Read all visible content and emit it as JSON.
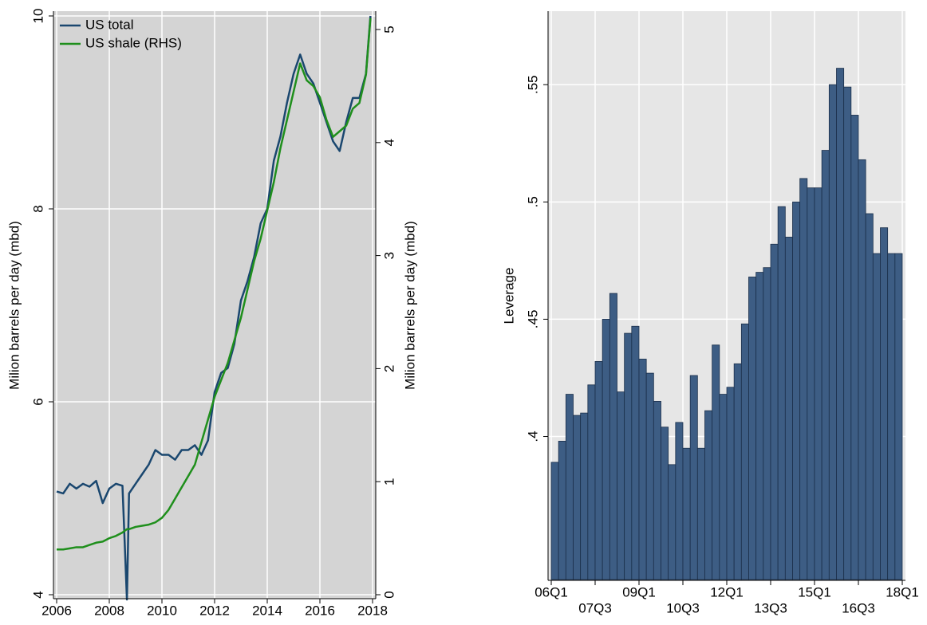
{
  "chart_data": [
    {
      "type": "line",
      "ylabel": "Milion barrels per day (mbd)",
      "y2label": "Milion barrels per day (mbd)",
      "x": [
        2006,
        2006.25,
        2006.5,
        2006.75,
        2007,
        2007.25,
        2007.5,
        2007.75,
        2008,
        2008.25,
        2008.5,
        2008.67,
        2008.75,
        2009,
        2009.25,
        2009.5,
        2009.75,
        2010,
        2010.25,
        2010.5,
        2010.75,
        2011,
        2011.25,
        2011.5,
        2011.75,
        2012,
        2012.25,
        2012.5,
        2012.75,
        2013,
        2013.25,
        2013.5,
        2013.75,
        2014,
        2014.25,
        2014.5,
        2014.75,
        2015,
        2015.25,
        2015.5,
        2015.75,
        2016,
        2016.25,
        2016.5,
        2016.75,
        2017,
        2017.25,
        2017.5,
        2017.75,
        2017.92
      ],
      "series": [
        {
          "name": "US total",
          "color": "#1a476f",
          "values": [
            5.07,
            5.05,
            5.15,
            5.1,
            5.15,
            5.12,
            5.18,
            4.95,
            5.1,
            5.15,
            5.13,
            3.95,
            5.05,
            5.15,
            5.25,
            5.35,
            5.5,
            5.45,
            5.45,
            5.4,
            5.5,
            5.5,
            5.55,
            5.45,
            5.6,
            6.1,
            6.3,
            6.35,
            6.6,
            7.05,
            7.25,
            7.5,
            7.85,
            8.0,
            8.5,
            8.75,
            9.1,
            9.4,
            9.6,
            9.4,
            9.3,
            9.1,
            8.9,
            8.7,
            8.6,
            8.9,
            9.15,
            9.15,
            9.4,
            10.0
          ]
        },
        {
          "name": "US shale (RHS)",
          "color": "#1f8f1c",
          "axis": "y2",
          "values": [
            0.4,
            0.4,
            0.41,
            0.42,
            0.42,
            0.44,
            0.46,
            0.47,
            0.5,
            0.52,
            0.55,
            0.58,
            0.58,
            0.6,
            0.61,
            0.62,
            0.64,
            0.68,
            0.75,
            0.85,
            0.95,
            1.05,
            1.15,
            1.35,
            1.55,
            1.75,
            1.9,
            2.05,
            2.25,
            2.45,
            2.7,
            2.95,
            3.15,
            3.4,
            3.65,
            3.95,
            4.2,
            4.45,
            4.7,
            4.55,
            4.5,
            4.4,
            4.2,
            4.05,
            4.1,
            4.15,
            4.3,
            4.35,
            4.6,
            5.1
          ]
        }
      ],
      "xlim": [
        2006,
        2018
      ],
      "xticks": [
        2006,
        2008,
        2010,
        2012,
        2014,
        2016,
        2018
      ],
      "ylim": [
        4,
        10
      ],
      "yticks": [
        4,
        6,
        8,
        10
      ],
      "y2lim": [
        0,
        5.12
      ],
      "y2ticks": [
        0,
        1,
        2,
        3,
        4,
        5
      ],
      "grid": true,
      "legend": "top-left"
    },
    {
      "type": "bar",
      "ylabel": "Leverage",
      "color": "#3d5d84",
      "x": [
        2006,
        2006.25,
        2006.5,
        2006.75,
        2007,
        2007.25,
        2007.5,
        2007.75,
        2008,
        2008.25,
        2008.5,
        2008.75,
        2009,
        2009.25,
        2009.5,
        2009.75,
        2010,
        2010.25,
        2010.5,
        2010.75,
        2011,
        2011.25,
        2011.5,
        2011.75,
        2012,
        2012.25,
        2012.5,
        2012.75,
        2013,
        2013.25,
        2013.5,
        2013.75,
        2014,
        2014.25,
        2014.5,
        2014.75,
        2015,
        2015.25,
        2015.5,
        2015.75,
        2016,
        2016.25,
        2016.5,
        2016.75,
        2017,
        2017.25,
        2017.5,
        2017.75
      ],
      "values": [
        0.389,
        0.398,
        0.418,
        0.409,
        0.41,
        0.422,
        0.432,
        0.45,
        0.461,
        0.419,
        0.444,
        0.447,
        0.433,
        0.427,
        0.415,
        0.404,
        0.388,
        0.406,
        0.395,
        0.426,
        0.395,
        0.411,
        0.439,
        0.418,
        0.421,
        0.431,
        0.448,
        0.468,
        0.47,
        0.472,
        0.482,
        0.498,
        0.485,
        0.5,
        0.51,
        0.506,
        0.506,
        0.522,
        0.55,
        0.557,
        0.549,
        0.537,
        0.518,
        0.495,
        0.478,
        0.489,
        0.478,
        0.478
      ],
      "xlim": [
        2006,
        2018
      ],
      "xticks": [
        {
          "value": 2006,
          "label": "06Q1"
        },
        {
          "value": 2007.5,
          "label": "07Q3"
        },
        {
          "value": 2009,
          "label": "09Q1"
        },
        {
          "value": 2010.5,
          "label": "10Q3"
        },
        {
          "value": 2012,
          "label": "12Q1"
        },
        {
          "value": 2013.5,
          "label": "13Q3"
        },
        {
          "value": 2015,
          "label": "15Q1"
        },
        {
          "value": 2016.5,
          "label": "16Q3"
        },
        {
          "value": 2018,
          "label": "18Q1"
        }
      ],
      "ylim": [
        0.339,
        0.581
      ],
      "yticks": [
        {
          "value": 0.4,
          "label": ".4"
        },
        {
          "value": 0.45,
          "label": ".45"
        },
        {
          "value": 0.5,
          "label": ".5"
        },
        {
          "value": 0.55,
          "label": ".55"
        }
      ],
      "grid": true
    }
  ]
}
